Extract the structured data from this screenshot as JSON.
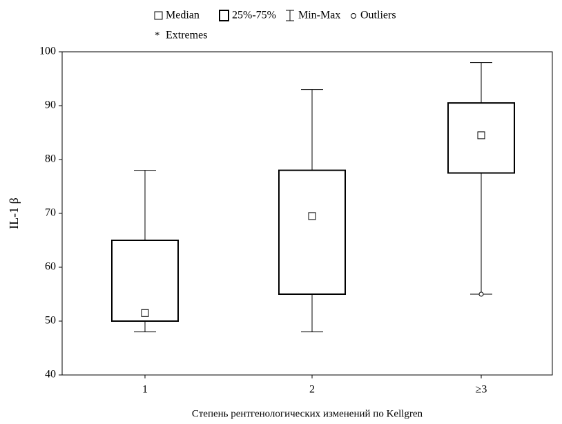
{
  "chart_data": {
    "type": "box",
    "legend": [
      "Median",
      "25%-75%",
      "Min-Max",
      "Outliers",
      "Extremes"
    ],
    "y_label": "IL-1 β",
    "x_label": "Степень рентгенологических изменений по Kellgren",
    "categories": [
      "1",
      "2",
      "≥3"
    ],
    "boxes": [
      {
        "min": 48,
        "q1": 50,
        "median": 51.5,
        "q3": 65,
        "max": 78,
        "outliers": []
      },
      {
        "min": 48,
        "q1": 55,
        "median": 69.5,
        "q3": 78,
        "max": 93,
        "outliers": []
      },
      {
        "min": 55,
        "q1": 77.5,
        "median": 84.5,
        "q3": 90.5,
        "max": 98,
        "outliers": [
          55
        ]
      }
    ],
    "ylim": [
      40,
      100
    ],
    "yticks": [
      40,
      50,
      60,
      70,
      80,
      90,
      100
    ]
  }
}
